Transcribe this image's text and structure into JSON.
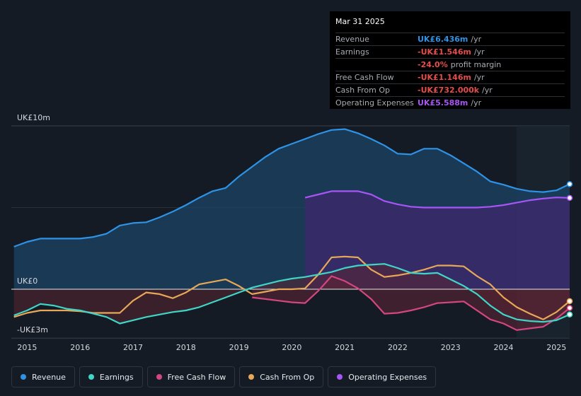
{
  "chart_data": {
    "type": "area",
    "y_unit_labels": {
      "top": "UK£10m",
      "zero": "UK£0",
      "bottom": "-UK£3m"
    },
    "ylim": [
      -3,
      10
    ],
    "xlim": [
      2014.7,
      2025.25
    ],
    "x_ticks": [
      "2015",
      "2016",
      "2017",
      "2018",
      "2019",
      "2020",
      "2021",
      "2022",
      "2023",
      "2024",
      "2025"
    ],
    "x_tick_values": [
      2015,
      2016,
      2017,
      2018,
      2019,
      2020,
      2021,
      2022,
      2023,
      2024,
      2025
    ],
    "forecast_start": 2024.25,
    "series": [
      {
        "name": "Revenue",
        "color": "#2e93e6",
        "fill": "#1b4466",
        "x": [
          2014.75,
          2015.0,
          2015.25,
          2015.5,
          2015.75,
          2016.0,
          2016.25,
          2016.5,
          2016.75,
          2017.0,
          2017.25,
          2017.5,
          2017.75,
          2018.0,
          2018.25,
          2018.5,
          2018.75,
          2019.0,
          2019.25,
          2019.5,
          2019.75,
          2020.0,
          2020.25,
          2020.5,
          2020.75,
          2021.0,
          2021.25,
          2021.5,
          2021.75,
          2022.0,
          2022.25,
          2022.5,
          2022.75,
          2023.0,
          2023.25,
          2023.5,
          2023.75,
          2024.0,
          2024.25,
          2024.5,
          2024.75,
          2025.0,
          2025.25
        ],
        "values": [
          2.6,
          2.9,
          3.1,
          3.1,
          3.1,
          3.1,
          3.2,
          3.4,
          3.9,
          4.05,
          4.1,
          4.4,
          4.75,
          5.15,
          5.6,
          6.0,
          6.2,
          6.9,
          7.5,
          8.1,
          8.6,
          8.9,
          9.2,
          9.5,
          9.75,
          9.8,
          9.55,
          9.2,
          8.8,
          8.3,
          8.25,
          8.6,
          8.6,
          8.2,
          7.7,
          7.2,
          6.6,
          6.4,
          6.15,
          6.0,
          5.95,
          6.05,
          6.436
        ]
      },
      {
        "name": "Operating Expenses",
        "color": "#a855f7",
        "fill": "#3b2a6b",
        "x": [
          2020.25,
          2020.5,
          2020.75,
          2021.0,
          2021.25,
          2021.5,
          2021.75,
          2022.0,
          2022.25,
          2022.5,
          2022.75,
          2023.0,
          2023.25,
          2023.5,
          2023.75,
          2024.0,
          2024.25,
          2024.5,
          2024.75,
          2025.0,
          2025.25
        ],
        "values": [
          5.6,
          5.8,
          6.0,
          6.0,
          6.0,
          5.8,
          5.4,
          5.2,
          5.05,
          5.0,
          5.0,
          5.0,
          5.0,
          5.0,
          5.05,
          5.15,
          5.3,
          5.45,
          5.55,
          5.62,
          5.588
        ]
      },
      {
        "name": "Earnings",
        "color": "#3fd6c8",
        "x": [
          2014.75,
          2015.0,
          2015.25,
          2015.5,
          2015.75,
          2016.0,
          2016.25,
          2016.5,
          2016.75,
          2017.0,
          2017.25,
          2017.5,
          2017.75,
          2018.0,
          2018.25,
          2018.5,
          2018.75,
          2019.0,
          2019.25,
          2019.5,
          2019.75,
          2020.0,
          2020.25,
          2020.5,
          2020.75,
          2021.0,
          2021.25,
          2021.5,
          2021.75,
          2022.0,
          2022.25,
          2022.5,
          2022.75,
          2023.0,
          2023.25,
          2023.5,
          2023.75,
          2024.0,
          2024.25,
          2024.5,
          2024.75,
          2025.0,
          2025.25
        ],
        "values": [
          -1.6,
          -1.3,
          -0.9,
          -1.0,
          -1.2,
          -1.3,
          -1.5,
          -1.7,
          -2.1,
          -1.9,
          -1.7,
          -1.55,
          -1.4,
          -1.3,
          -1.1,
          -0.8,
          -0.5,
          -0.2,
          0.1,
          0.3,
          0.5,
          0.65,
          0.75,
          0.9,
          1.05,
          1.3,
          1.45,
          1.5,
          1.55,
          1.3,
          1.0,
          0.95,
          1.0,
          0.6,
          0.2,
          -0.3,
          -1.0,
          -1.55,
          -1.85,
          -1.95,
          -2.0,
          -1.9,
          -1.546
        ]
      },
      {
        "name": "Free Cash Flow",
        "color": "#d4467f",
        "fill": "#5a2536",
        "x": [
          2019.25,
          2019.5,
          2019.75,
          2020.0,
          2020.25,
          2020.5,
          2020.75,
          2021.0,
          2021.25,
          2021.5,
          2021.75,
          2022.0,
          2022.25,
          2022.5,
          2022.75,
          2023.0,
          2023.25,
          2023.5,
          2023.75,
          2024.0,
          2024.25,
          2024.5,
          2024.75,
          2025.0,
          2025.25
        ],
        "values": [
          -0.5,
          -0.6,
          -0.7,
          -0.8,
          -0.85,
          -0.1,
          0.8,
          0.5,
          0.05,
          -0.6,
          -1.5,
          -1.45,
          -1.3,
          -1.1,
          -0.85,
          -0.8,
          -0.75,
          -1.3,
          -1.85,
          -2.1,
          -2.5,
          -2.4,
          -2.3,
          -1.8,
          -1.146
        ]
      },
      {
        "name": "Cash From Op",
        "color": "#e8a857",
        "x": [
          2014.75,
          2015.0,
          2015.25,
          2015.5,
          2015.75,
          2016.0,
          2016.25,
          2016.5,
          2016.75,
          2017.0,
          2017.25,
          2017.5,
          2017.75,
          2018.0,
          2018.25,
          2018.5,
          2018.75,
          2019.0,
          2019.25,
          2019.5,
          2019.75,
          2020.0,
          2020.25,
          2020.5,
          2020.75,
          2021.0,
          2021.25,
          2021.5,
          2021.75,
          2022.0,
          2022.25,
          2022.5,
          2022.75,
          2023.0,
          2023.25,
          2023.5,
          2023.75,
          2024.0,
          2024.25,
          2024.5,
          2024.75,
          2025.0,
          2025.25
        ],
        "values": [
          -1.7,
          -1.45,
          -1.3,
          -1.3,
          -1.3,
          -1.35,
          -1.45,
          -1.45,
          -1.45,
          -0.7,
          -0.2,
          -0.3,
          -0.55,
          -0.2,
          0.3,
          0.45,
          0.6,
          0.2,
          -0.3,
          -0.15,
          0.0,
          0.0,
          0.05,
          0.9,
          1.95,
          2.0,
          1.95,
          1.2,
          0.75,
          0.85,
          1.0,
          1.2,
          1.45,
          1.45,
          1.4,
          0.8,
          0.3,
          -0.5,
          -1.1,
          -1.5,
          -1.85,
          -1.4,
          -0.732
        ]
      }
    ]
  },
  "tooltip": {
    "date": "Mar 31 2025",
    "rows": [
      {
        "label": "Revenue",
        "value": "UK£6.436m",
        "unit": "/yr",
        "color": "#2e93e6"
      },
      {
        "label": "Earnings",
        "value": "-UK£1.546m",
        "unit": "/yr",
        "color": "#e64c4c"
      },
      {
        "label": "",
        "value": "-24.0%",
        "unit": "profit margin",
        "color": "#e64c4c"
      },
      {
        "label": "Free Cash Flow",
        "value": "-UK£1.146m",
        "unit": "/yr",
        "color": "#e64c4c"
      },
      {
        "label": "Cash From Op",
        "value": "-UK£732.000k",
        "unit": "/yr",
        "color": "#e64c4c"
      },
      {
        "label": "Operating Expenses",
        "value": "UK£5.588m",
        "unit": "/yr",
        "color": "#a855f7"
      }
    ]
  },
  "legend": [
    {
      "label": "Revenue",
      "color": "#2e93e6"
    },
    {
      "label": "Earnings",
      "color": "#3fd6c8"
    },
    {
      "label": "Free Cash Flow",
      "color": "#d4467f"
    },
    {
      "label": "Cash From Op",
      "color": "#e8a857"
    },
    {
      "label": "Operating Expenses",
      "color": "#a855f7"
    }
  ]
}
